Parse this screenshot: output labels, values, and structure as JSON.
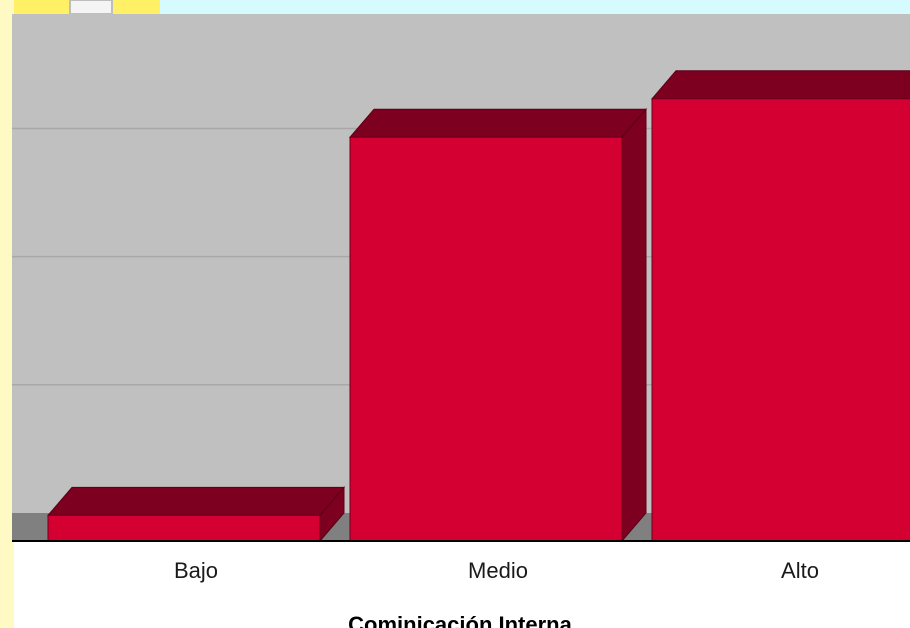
{
  "chart_data": {
    "type": "bar",
    "categories": [
      "Bajo",
      "Medio",
      "Alto"
    ],
    "values": [
      2,
      31.5,
      34.5
    ],
    "title": "",
    "xlabel": "Cominicación Interna",
    "ylabel": "",
    "ylim": [
      0,
      40
    ],
    "grid": true,
    "legend": "none"
  },
  "colors": {
    "bar_front": "#d50032",
    "bar_top": "#7d0020",
    "bar_side": "#7d0020",
    "plot_background": "#c0c0c0",
    "floor": "#808080",
    "gridline": "#a8a8a8",
    "banner_yellow": "#fff066",
    "banner_cyan": "#d6fbff"
  }
}
